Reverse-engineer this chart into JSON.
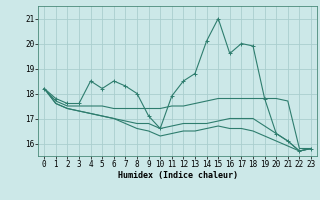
{
  "title": "",
  "xlabel": "Humidex (Indice chaleur)",
  "bg_color": "#cce8e8",
  "grid_color": "#aacece",
  "line_color": "#2e7d6e",
  "xlim": [
    -0.5,
    23.5
  ],
  "ylim": [
    15.5,
    21.5
  ],
  "yticks": [
    16,
    17,
    18,
    19,
    20,
    21
  ],
  "xticks": [
    0,
    1,
    2,
    3,
    4,
    5,
    6,
    7,
    8,
    9,
    10,
    11,
    12,
    13,
    14,
    15,
    16,
    17,
    18,
    19,
    20,
    21,
    22,
    23
  ],
  "series": [
    [
      18.2,
      17.8,
      17.6,
      17.6,
      18.5,
      18.2,
      18.5,
      18.3,
      18.0,
      17.1,
      16.6,
      17.9,
      18.5,
      18.8,
      20.1,
      21.0,
      19.6,
      20.0,
      19.9,
      17.8,
      16.4,
      16.1,
      15.7,
      15.8
    ],
    [
      18.2,
      17.7,
      17.5,
      17.5,
      17.5,
      17.5,
      17.4,
      17.4,
      17.4,
      17.4,
      17.4,
      17.5,
      17.5,
      17.6,
      17.7,
      17.8,
      17.8,
      17.8,
      17.8,
      17.8,
      17.8,
      17.7,
      15.8,
      15.8
    ],
    [
      18.2,
      17.6,
      17.4,
      17.3,
      17.2,
      17.1,
      17.0,
      16.9,
      16.8,
      16.8,
      16.6,
      16.7,
      16.8,
      16.8,
      16.8,
      16.9,
      17.0,
      17.0,
      17.0,
      16.7,
      16.4,
      16.1,
      15.7,
      15.8
    ],
    [
      18.2,
      17.6,
      17.4,
      17.3,
      17.2,
      17.1,
      17.0,
      16.8,
      16.6,
      16.5,
      16.3,
      16.4,
      16.5,
      16.5,
      16.6,
      16.7,
      16.6,
      16.6,
      16.5,
      16.3,
      16.1,
      15.9,
      15.7,
      15.8
    ]
  ],
  "marker_series": [
    0
  ],
  "marker": "+",
  "marker_size": 3,
  "linewidth": 0.8,
  "tick_fontsize": 5.5,
  "xlabel_fontsize": 6.0
}
